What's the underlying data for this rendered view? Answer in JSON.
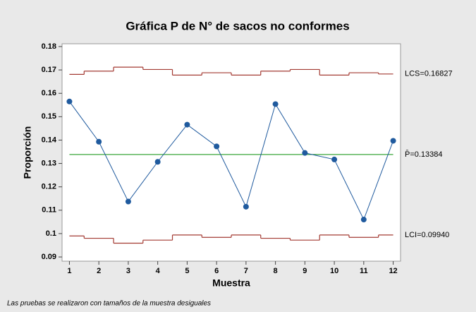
{
  "chart_data": {
    "type": "p-chart",
    "title": "Gráfica P de N° de sacos no conformes",
    "x_label": "Muestra",
    "y_label": "Proporción",
    "footnote": "Las pruebas se realizaron con tamaños de la muestra desiguales",
    "x": [
      1,
      2,
      3,
      4,
      5,
      6,
      7,
      8,
      9,
      10,
      11,
      12
    ],
    "series": [
      {
        "name": "Proporción",
        "color": "#1f5a9e",
        "values": [
          0.1565,
          0.1393,
          0.1137,
          0.1307,
          0.1466,
          0.1373,
          0.1115,
          0.1554,
          0.1345,
          0.1317,
          0.106,
          0.1397
        ]
      }
    ],
    "ucl": {
      "label": "LCS=0.16827",
      "color": "#a33a32",
      "values": [
        0.1681,
        0.1695,
        0.1712,
        0.1702,
        0.1678,
        0.1688,
        0.1678,
        0.1695,
        0.1702,
        0.1678,
        0.1688,
        0.16827
      ]
    },
    "lcl": {
      "label": "LCI=0.09940",
      "color": "#a33a32",
      "values": [
        0.099,
        0.098,
        0.0959,
        0.0972,
        0.0994,
        0.0984,
        0.0994,
        0.098,
        0.0972,
        0.0994,
        0.0984,
        0.0994
      ]
    },
    "center": {
      "label": "P̄=0.13384",
      "value": 0.13384,
      "color": "#3aa53a"
    },
    "xlim": [
      0.75,
      12.25
    ],
    "xticks": [
      1,
      2,
      3,
      4,
      5,
      6,
      7,
      8,
      9,
      10,
      11,
      12
    ],
    "ylim": [
      0.0882,
      0.1812
    ],
    "yticks": [
      0.09,
      0.1,
      0.11,
      0.12,
      0.13,
      0.14,
      0.15,
      0.16,
      0.17,
      0.18
    ]
  }
}
